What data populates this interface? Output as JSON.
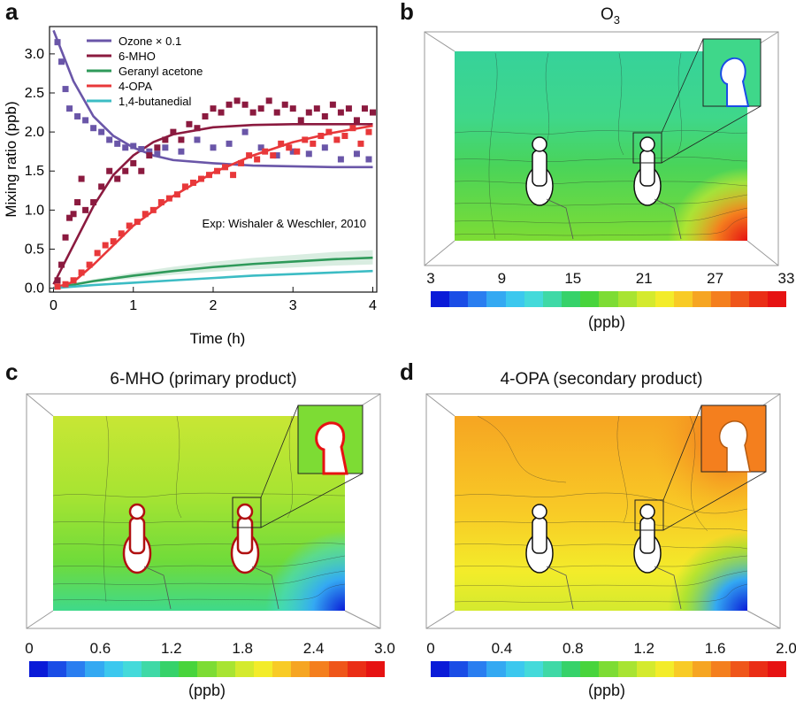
{
  "panels": {
    "a": {
      "letter": "a"
    },
    "b": {
      "letter": "b",
      "title_main": "O",
      "title_sub": "3",
      "colorbar_ticks": [
        "3",
        "9",
        "15",
        "21",
        "27",
        "33"
      ],
      "unit": "(ppb)"
    },
    "c": {
      "letter": "c",
      "title": "6-MHO (primary product)",
      "colorbar_ticks": [
        "0",
        "0.6",
        "1.2",
        "1.8",
        "2.4",
        "3.0"
      ],
      "unit": "(ppb)"
    },
    "d": {
      "letter": "d",
      "title": "4-OPA (secondary product)",
      "colorbar_ticks": [
        "0",
        "0.4",
        "0.8",
        "1.2",
        "1.6",
        "2.0"
      ],
      "unit": "(ppb)"
    }
  },
  "colors": {
    "ozone": "#6a56a8",
    "mho": "#8b1a3f",
    "geranyl": "#2f9a5a",
    "opa": "#e8383a",
    "butanedial": "#3cbcc4",
    "colormap": [
      "#0a1bd8",
      "#1a4de6",
      "#2a7ef0",
      "#34a9f2",
      "#3cc8ee",
      "#44dada",
      "#3fd9a6",
      "#36d26a",
      "#48d43c",
      "#7ddc34",
      "#a8e432",
      "#d4ea2e",
      "#f3ec2a",
      "#f8cb26",
      "#f6a522",
      "#f47f1e",
      "#ef561a",
      "#ea2e16",
      "#e61212"
    ]
  },
  "chart_data": {
    "type": "line",
    "xlabel": "Time (h)",
    "ylabel": "Mixing ratio (ppb)",
    "xlim": [
      -0.05,
      4.05
    ],
    "ylim": [
      -0.05,
      3.35
    ],
    "xticks": [
      "0",
      "1",
      "2",
      "3",
      "4"
    ],
    "yticks": [
      "0.0",
      "0.5",
      "1.0",
      "1.5",
      "2.0",
      "2.5",
      "3.0"
    ],
    "annotation": "Exp: Wishaler & Weschler, 2010",
    "legend_position": "top-right",
    "series": [
      {
        "name": "Ozone × 0.1",
        "kind": "line",
        "color_key": "ozone",
        "x": [
          0,
          0.25,
          0.5,
          0.75,
          1.0,
          1.25,
          1.5,
          2.0,
          2.5,
          3.0,
          3.5,
          4.0
        ],
        "y": [
          3.3,
          2.65,
          2.2,
          1.95,
          1.8,
          1.7,
          1.64,
          1.6,
          1.57,
          1.56,
          1.55,
          1.55
        ]
      },
      {
        "name": "6-MHO",
        "kind": "line",
        "color_key": "mho",
        "x": [
          0,
          0.25,
          0.5,
          0.75,
          1.0,
          1.25,
          1.5,
          2.0,
          2.5,
          3.0,
          3.5,
          4.0
        ],
        "y": [
          0.05,
          0.55,
          1.05,
          1.45,
          1.7,
          1.87,
          1.97,
          2.06,
          2.09,
          2.1,
          2.1,
          2.1
        ]
      },
      {
        "name": "Geranyl acetone",
        "kind": "line",
        "color_key": "geranyl",
        "x": [
          0,
          0.5,
          1.0,
          1.5,
          2.0,
          2.5,
          3.0,
          3.5,
          4.0
        ],
        "y": [
          0.0,
          0.09,
          0.16,
          0.22,
          0.27,
          0.31,
          0.34,
          0.37,
          0.39
        ]
      },
      {
        "name": "4-OPA",
        "kind": "line",
        "color_key": "opa",
        "x": [
          0,
          0.25,
          0.5,
          0.75,
          1.0,
          1.5,
          2.0,
          2.5,
          3.0,
          3.5,
          4.0
        ],
        "y": [
          0.0,
          0.08,
          0.3,
          0.55,
          0.8,
          1.18,
          1.48,
          1.7,
          1.87,
          1.99,
          2.08
        ]
      },
      {
        "name": "1,4-butanedial",
        "kind": "line",
        "color_key": "butanedial",
        "x": [
          0,
          0.5,
          1.0,
          1.5,
          2.0,
          2.5,
          3.0,
          3.5,
          4.0
        ],
        "y": [
          0.0,
          0.04,
          0.07,
          0.1,
          0.13,
          0.16,
          0.18,
          0.2,
          0.22
        ]
      },
      {
        "name": "",
        "kind": "markers",
        "color_key": "ozone",
        "x": [
          0.05,
          0.1,
          0.15,
          0.2,
          0.3,
          0.4,
          0.5,
          0.6,
          0.7,
          0.8,
          0.9,
          1.0,
          1.1,
          1.2,
          1.3,
          1.4,
          1.6,
          1.8,
          2.0,
          2.2,
          2.4,
          2.6,
          2.8,
          3.0,
          3.2,
          3.4,
          3.6,
          3.8,
          3.95
        ],
        "y": [
          3.15,
          2.9,
          2.55,
          2.3,
          2.2,
          2.15,
          2.05,
          2.0,
          1.9,
          1.85,
          1.8,
          1.82,
          1.78,
          1.75,
          1.72,
          1.8,
          1.75,
          1.9,
          1.8,
          1.85,
          2.0,
          1.8,
          1.7,
          1.75,
          1.72,
          1.8,
          1.65,
          1.72,
          1.65
        ]
      },
      {
        "name": "",
        "kind": "markers",
        "color_key": "mho",
        "x": [
          0.05,
          0.1,
          0.15,
          0.2,
          0.25,
          0.3,
          0.35,
          0.4,
          0.5,
          0.6,
          0.7,
          0.8,
          0.9,
          1.0,
          1.1,
          1.2,
          1.3,
          1.4,
          1.5,
          1.6,
          1.7,
          1.8,
          1.9,
          2.0,
          2.1,
          2.2,
          2.3,
          2.4,
          2.5,
          2.6,
          2.7,
          2.8,
          2.9,
          3.0,
          3.1,
          3.2,
          3.3,
          3.4,
          3.5,
          3.6,
          3.7,
          3.8,
          3.9,
          4.0
        ],
        "y": [
          0.1,
          0.3,
          0.65,
          0.9,
          0.95,
          1.1,
          1.4,
          1.0,
          1.1,
          1.3,
          1.5,
          1.4,
          1.5,
          1.6,
          1.5,
          1.7,
          1.8,
          1.9,
          2.0,
          1.9,
          2.1,
          2.05,
          2.2,
          2.3,
          2.25,
          2.35,
          2.4,
          2.35,
          2.25,
          2.3,
          2.4,
          2.25,
          2.35,
          2.3,
          2.15,
          2.25,
          2.3,
          2.2,
          2.35,
          2.25,
          2.3,
          2.15,
          2.3,
          2.25
        ]
      },
      {
        "name": "",
        "kind": "markers",
        "color_key": "opa",
        "x": [
          0.05,
          0.15,
          0.25,
          0.35,
          0.45,
          0.55,
          0.65,
          0.75,
          0.85,
          0.95,
          1.05,
          1.15,
          1.25,
          1.35,
          1.45,
          1.55,
          1.65,
          1.75,
          1.85,
          1.95,
          2.05,
          2.15,
          2.25,
          2.35,
          2.45,
          2.55,
          2.65,
          2.75,
          2.85,
          2.95,
          3.05,
          3.15,
          3.25,
          3.35,
          3.45,
          3.55,
          3.65,
          3.75,
          3.85,
          3.95
        ],
        "y": [
          0.02,
          0.05,
          0.1,
          0.2,
          0.3,
          0.45,
          0.55,
          0.6,
          0.7,
          0.8,
          0.85,
          0.95,
          1.0,
          1.1,
          1.15,
          1.2,
          1.3,
          1.35,
          1.4,
          1.45,
          1.5,
          1.55,
          1.45,
          1.6,
          1.7,
          1.65,
          1.75,
          1.7,
          1.85,
          1.8,
          1.75,
          1.9,
          1.85,
          1.95,
          2.0,
          1.9,
          1.95,
          2.05,
          1.85,
          2.0
        ]
      }
    ]
  }
}
